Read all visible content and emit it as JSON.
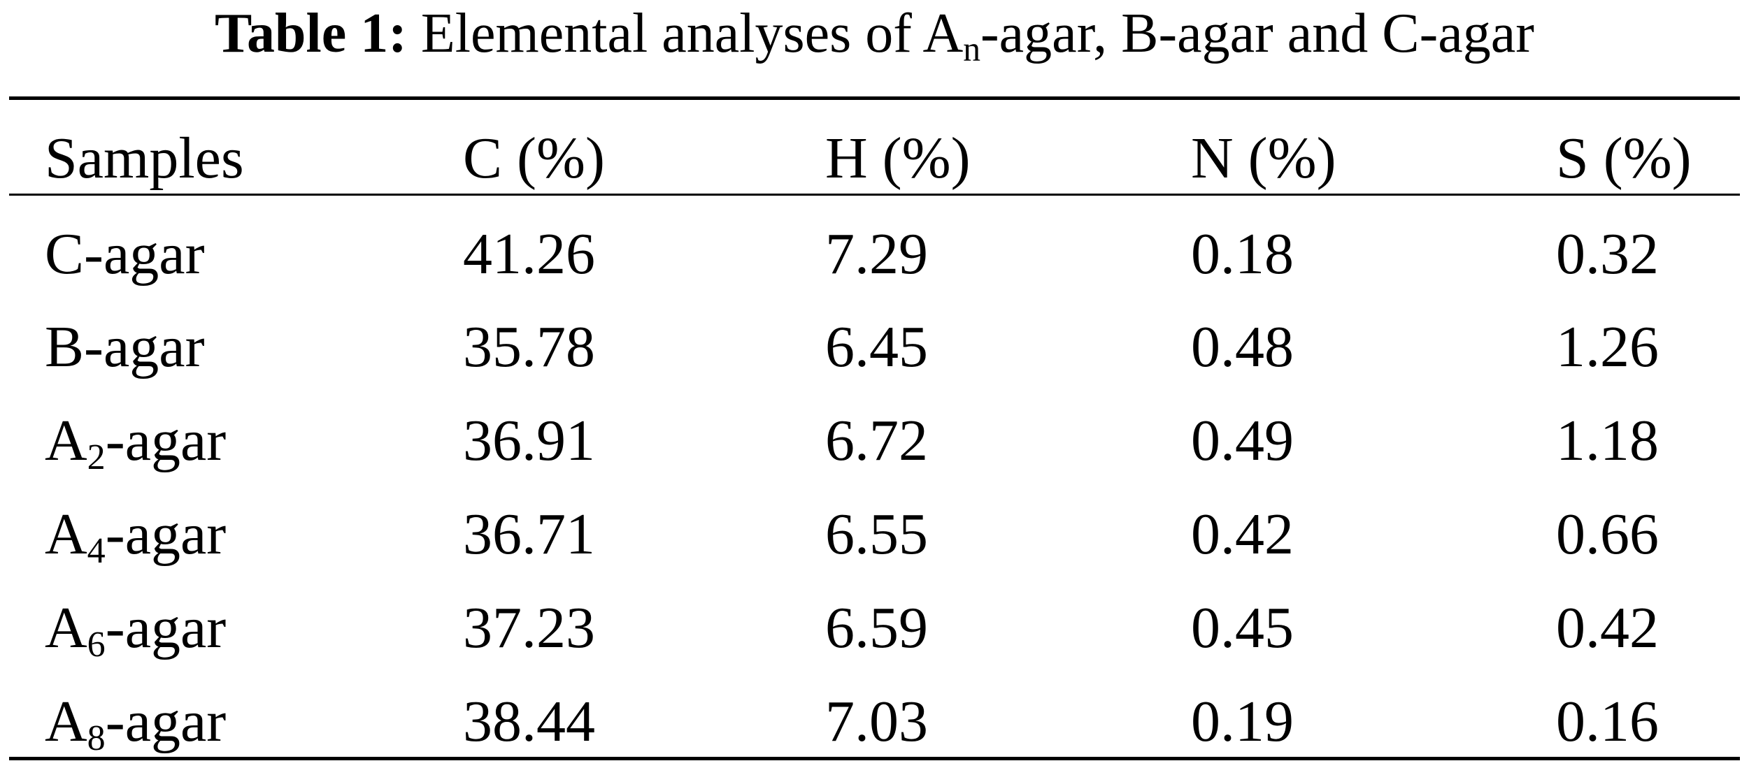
{
  "caption": {
    "label": "Table 1:",
    "text_before": "Elemental analyses of A",
    "text_sub": "n",
    "text_after": "-agar, B-agar and C-agar"
  },
  "table": {
    "header": [
      "Samples",
      "C (%)",
      "H (%)",
      "N (%)",
      "S (%)"
    ],
    "rows": [
      [
        {
          "base": "C-agar"
        },
        "41.26",
        "7.29",
        "0.18",
        "0.32"
      ],
      [
        {
          "base": "B-agar"
        },
        "35.78",
        "6.45",
        "0.48",
        "1.26"
      ],
      [
        {
          "base": "A",
          "sub": "2",
          "rest": "-agar"
        },
        "36.91",
        "6.72",
        "0.49",
        "1.18"
      ],
      [
        {
          "base": "A",
          "sub": "4",
          "rest": "-agar"
        },
        "36.71",
        "6.55",
        "0.42",
        "0.66"
      ],
      [
        {
          "base": "A",
          "sub": "6",
          "rest": "-agar"
        },
        "37.23",
        "6.59",
        "0.45",
        "0.42"
      ],
      [
        {
          "base": "A",
          "sub": "8",
          "rest": "-agar"
        },
        "38.44",
        "7.03",
        "0.19",
        "0.16"
      ]
    ]
  }
}
